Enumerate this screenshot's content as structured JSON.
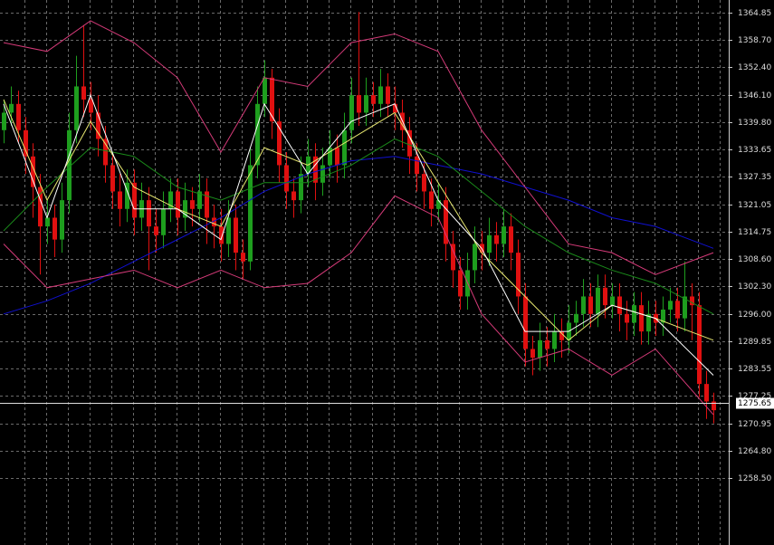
{
  "chart_data": {
    "type": "candlestick",
    "up_color": "#1e9e1e",
    "down_color": "#e01010",
    "open": [
      1338,
      1342,
      1344,
      1338,
      1332,
      1325,
      1316,
      1318,
      1313,
      1322,
      1338,
      1348,
      1345,
      1342,
      1336,
      1330,
      1324,
      1320,
      1326,
      1318,
      1322,
      1316,
      1314,
      1320,
      1324,
      1318,
      1322,
      1320,
      1324,
      1318,
      1316,
      1312,
      1318,
      1310,
      1308,
      1330,
      1344,
      1350,
      1340,
      1330,
      1324,
      1322,
      1328,
      1332,
      1326,
      1330,
      1334,
      1330,
      1338,
      1346,
      1342,
      1346,
      1344,
      1348,
      1344,
      1342,
      1338,
      1332,
      1328,
      1324,
      1320,
      1322,
      1312,
      1306,
      1300,
      1306,
      1312,
      1310,
      1314,
      1312,
      1316,
      1310,
      1300,
      1288,
      1286,
      1290,
      1288,
      1292,
      1290,
      1294,
      1296,
      1300,
      1296,
      1302,
      1298,
      1300,
      1296,
      1294,
      1298,
      1292,
      1296,
      1294,
      1297,
      1299,
      1295,
      1300,
      1298,
      1280,
      1276
    ],
    "high": [
      1345,
      1348,
      1347,
      1341,
      1335,
      1328,
      1322,
      1321,
      1326,
      1342,
      1355,
      1362,
      1349,
      1346,
      1339,
      1333,
      1328,
      1329,
      1329,
      1326,
      1325,
      1320,
      1324,
      1327,
      1327,
      1326,
      1325,
      1328,
      1327,
      1321,
      1320,
      1322,
      1321,
      1313,
      1334,
      1348,
      1354,
      1352,
      1343,
      1333,
      1327,
      1332,
      1336,
      1335,
      1334,
      1338,
      1337,
      1342,
      1350,
      1365,
      1350,
      1349,
      1352,
      1351,
      1348,
      1345,
      1341,
      1335,
      1331,
      1327,
      1326,
      1325,
      1315,
      1309,
      1310,
      1316,
      1315,
      1318,
      1317,
      1320,
      1319,
      1313,
      1303,
      1291,
      1294,
      1293,
      1296,
      1295,
      1298,
      1299,
      1304,
      1303,
      1305,
      1305,
      1303,
      1303,
      1299,
      1301,
      1301,
      1299,
      1299,
      1300,
      1302,
      1302,
      1308,
      1303,
      1301,
      1283,
      1278
    ],
    "low": [
      1335,
      1339,
      1335,
      1328,
      1318,
      1305,
      1312,
      1309,
      1310,
      1319,
      1335,
      1341,
      1338,
      1332,
      1326,
      1320,
      1316,
      1317,
      1314,
      1315,
      1306,
      1310,
      1311,
      1317,
      1314,
      1315,
      1316,
      1317,
      1312,
      1311,
      1308,
      1309,
      1306,
      1304,
      1306,
      1327,
      1341,
      1336,
      1326,
      1320,
      1318,
      1319,
      1325,
      1322,
      1323,
      1327,
      1326,
      1327,
      1335,
      1339,
      1339,
      1341,
      1341,
      1341,
      1338,
      1334,
      1328,
      1324,
      1320,
      1316,
      1317,
      1308,
      1302,
      1297,
      1297,
      1303,
      1306,
      1307,
      1308,
      1309,
      1306,
      1296,
      1284,
      1282,
      1283,
      1284,
      1285,
      1286,
      1287,
      1291,
      1293,
      1293,
      1293,
      1295,
      1295,
      1292,
      1290,
      1291,
      1289,
      1289,
      1291,
      1291,
      1294,
      1292,
      1292,
      1290,
      1277,
      1272,
      1271
    ],
    "close": [
      1342,
      1344,
      1338,
      1332,
      1325,
      1316,
      1318,
      1313,
      1322,
      1338,
      1348,
      1345,
      1342,
      1336,
      1330,
      1324,
      1320,
      1326,
      1318,
      1322,
      1316,
      1314,
      1320,
      1324,
      1318,
      1322,
      1320,
      1324,
      1318,
      1316,
      1312,
      1318,
      1310,
      1308,
      1330,
      1344,
      1350,
      1340,
      1330,
      1324,
      1322,
      1328,
      1332,
      1326,
      1330,
      1334,
      1330,
      1338,
      1346,
      1342,
      1346,
      1344,
      1348,
      1344,
      1342,
      1338,
      1332,
      1328,
      1324,
      1320,
      1322,
      1312,
      1306,
      1300,
      1306,
      1312,
      1310,
      1314,
      1312,
      1316,
      1310,
      1300,
      1288,
      1286,
      1290,
      1288,
      1292,
      1290,
      1294,
      1296,
      1300,
      1296,
      1302,
      1298,
      1300,
      1296,
      1294,
      1298,
      1292,
      1296,
      1294,
      1297,
      1299,
      1295,
      1300,
      1298,
      1280,
      1276,
      1274
    ],
    "lines_x": [
      0,
      6,
      12,
      18,
      24,
      30,
      36,
      42,
      48,
      54,
      60,
      66,
      72,
      78,
      84,
      90,
      98
    ],
    "lines": [
      {
        "color": "#1010d0",
        "values": [
          1296,
          1299,
          1303,
          1308,
          1313,
          1318,
          1324,
          1328,
          1331,
          1332,
          1330,
          1328,
          1325,
          1322,
          1318,
          1316,
          1311
        ]
      },
      {
        "color": "#1a8a1a",
        "values": [
          1315,
          1325,
          1334,
          1332,
          1325,
          1322,
          1326,
          1326,
          1330,
          1336,
          1332,
          1324,
          1316,
          1310,
          1306,
          1303,
          1296
        ]
      },
      {
        "color": "#d43a78",
        "values": [
          1358,
          1356,
          1363,
          1358,
          1350,
          1333,
          1350,
          1348,
          1358,
          1360,
          1356,
          1338,
          1325,
          1312,
          1310,
          1305,
          1310
        ]
      },
      {
        "color": "#d43a78",
        "values": [
          1312,
          1302,
          1304,
          1306,
          1302,
          1306,
          1302,
          1303,
          1310,
          1323,
          1318,
          1296,
          1285,
          1288,
          1282,
          1288,
          1273
        ]
      },
      {
        "color": "#e8e870",
        "values": [
          1345,
          1322,
          1340,
          1325,
          1320,
          1316,
          1334,
          1330,
          1336,
          1342,
          1326,
          1310,
          1300,
          1290,
          1298,
          1295,
          1290
        ]
      },
      {
        "color": "#ffffff",
        "values": [
          1344,
          1318,
          1346,
          1320,
          1320,
          1313,
          1344,
          1328,
          1340,
          1344,
          1322,
          1311,
          1292,
          1292,
          1298,
          1295,
          1282
        ]
      }
    ],
    "current_price": 1275.65,
    "ylim": [
      1243.2,
      1367.75
    ],
    "yticks": [
      {
        "value": 1364.85,
        "label": "1364.85"
      },
      {
        "value": 1358.7,
        "label": "1358.70"
      },
      {
        "value": 1352.4,
        "label": "1352.40"
      },
      {
        "value": 1346.1,
        "label": "1346.10"
      },
      {
        "value": 1339.8,
        "label": "1339.80"
      },
      1333.65,
      1327.35,
      1321.05,
      1314.75,
      {
        "value": 1308.6,
        "label": "1308.60"
      },
      {
        "value": 1302.3,
        "label": "1302.30"
      },
      {
        "value": 1296,
        "label": "1296.00"
      },
      1289.85,
      1283.55,
      1277.25,
      1270.95,
      {
        "value": 1264.8,
        "label": "1264.80"
      },
      {
        "value": 1258.5,
        "label": "1258.50"
      }
    ],
    "grid": true
  }
}
